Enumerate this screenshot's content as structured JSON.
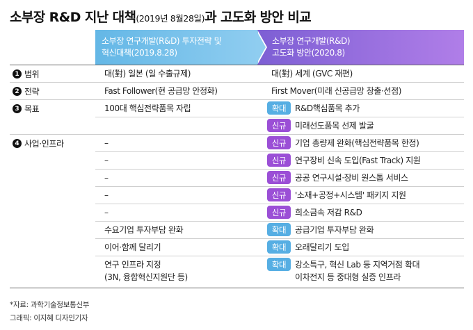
{
  "title": {
    "main_before": "소부장 R&D 지난 대책",
    "sub": "(2019년 8월28일)",
    "main_after": "과 고도화 방안 비교"
  },
  "header": {
    "col1": [
      "소부장 연구개발(R&D) 투자전략 및",
      "혁신대책(2019.8.28)"
    ],
    "col2": [
      "소부장 연구개발(R&D)",
      "고도화 방안(2020.8)"
    ]
  },
  "categories": [
    {
      "num": "1",
      "label": "범위"
    },
    {
      "num": "2",
      "label": "전략"
    },
    {
      "num": "3",
      "label": "목표"
    },
    {
      "num": "4",
      "label": "사업·인프라"
    }
  ],
  "badge_labels": {
    "expand": "확대",
    "new": "신규"
  },
  "rows": [
    {
      "old": "대(對) 일본 (일 수출규제)",
      "badge": "",
      "new": "대(對) 세계 (GVC 재편)"
    },
    {
      "old": "Fast Follower(현 공급망 안정화)",
      "badge": "",
      "new": "First Mover(미래 신공급망 창출·선점)"
    },
    {
      "old": "100대 핵심전략품목 자립",
      "badge": "expand",
      "new": "R&D핵심품목 추가"
    },
    {
      "old": "",
      "badge": "new",
      "new": "미래선도품목 선제 발굴"
    },
    {
      "old": "–",
      "badge": "new",
      "new": "기업 총량제 완화(핵심전략품목 한정)"
    },
    {
      "old": "–",
      "badge": "new",
      "new": "연구장비 신속 도입(Fast Track) 지원"
    },
    {
      "old": "–",
      "badge": "new",
      "new": "공공 연구시설·장비 원스톱 서비스"
    },
    {
      "old": "–",
      "badge": "new",
      "new": "'소재+공정+시스템' 패키지 지원"
    },
    {
      "old": "–",
      "badge": "new",
      "new": "희소금속 저감 R&D"
    },
    {
      "old": "수요기업 투자부담 완화",
      "badge": "expand",
      "new": "공급기업 투자부담 완화"
    },
    {
      "old": "이어·함께 달리기",
      "badge": "expand",
      "new": "오래달리기 도입"
    },
    {
      "old": "연구 인프라 지정",
      "old2": "(3N, 융합혁신지원단 등)",
      "badge": "expand",
      "new": "강소특구, 혁신 Lab 등 지역거점 확대",
      "new2": "이차전지 등 중대형 실증 인프라"
    }
  ],
  "footnotes": {
    "source": "*자료: 과학기술정보통신부",
    "credit": "그래픽: 이지혜 디자인기자"
  }
}
